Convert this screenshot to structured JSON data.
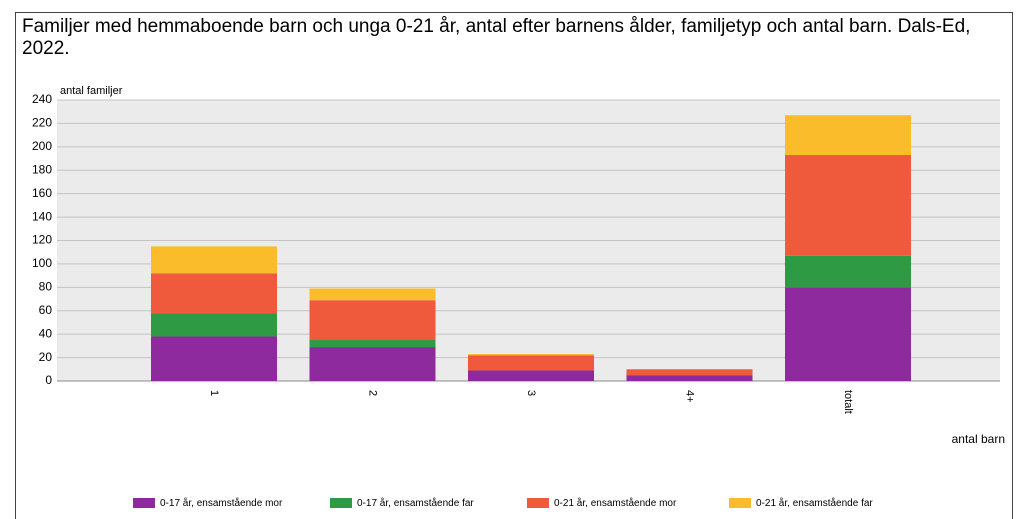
{
  "chart_data": {
    "type": "stacked_bar",
    "title": "Familjer med hemmaboende barn och unga 0-21 år, antal efter barnens ålder, familjetyp och antal barn. Dals-Ed, 2022.",
    "y_label": "antal familjer",
    "x_label": "antal barn",
    "categories": [
      "1",
      "2",
      "3",
      "4+",
      "totalt"
    ],
    "series": [
      {
        "name": "0-17 år, ensamstående mor",
        "color": "#8e2a9e",
        "values": [
          38,
          29,
          9,
          5,
          80
        ]
      },
      {
        "name": "0-17 år, ensamstående far",
        "color": "#2f9a44",
        "values": [
          20,
          6,
          0,
          0,
          27
        ]
      },
      {
        "name": "0-21 år, ensamstående mor",
        "color": "#f05a3c",
        "values": [
          34,
          34,
          13,
          5,
          86
        ]
      },
      {
        "name": "0-21 år, ensamstående far",
        "color": "#fbbc2c",
        "values": [
          23,
          10,
          1,
          0,
          34
        ]
      }
    ],
    "ylim": [
      0,
      240
    ],
    "yticks": [
      0,
      20,
      40,
      60,
      80,
      100,
      120,
      140,
      160,
      180,
      200,
      220,
      240
    ],
    "grid": true
  }
}
